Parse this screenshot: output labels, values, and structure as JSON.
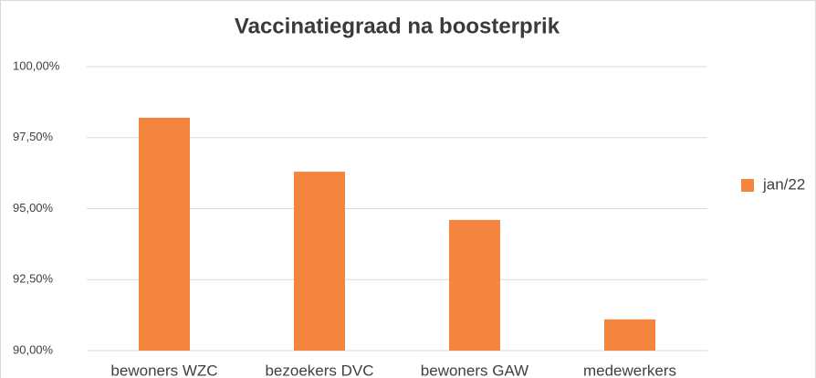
{
  "chart_data": {
    "type": "bar",
    "title": "Vaccinatiegraad na boosterprik",
    "categories": [
      "bewoners WZC",
      "bezoekers DVC",
      "bewoners GAW",
      "medewerkers"
    ],
    "series": [
      {
        "name": "jan/22",
        "color": "#f4853e",
        "values": [
          98.2,
          96.3,
          94.6,
          91.1
        ]
      }
    ],
    "ylim": [
      90,
      100
    ],
    "yticks": [
      {
        "value": 90,
        "label": "90,00%"
      },
      {
        "value": 92.5,
        "label": "92,50%"
      },
      {
        "value": 95,
        "label": "95,00%"
      },
      {
        "value": 97.5,
        "label": "97,50%"
      },
      {
        "value": 100,
        "label": "100,00%"
      }
    ],
    "grid": true,
    "legend": "right"
  }
}
